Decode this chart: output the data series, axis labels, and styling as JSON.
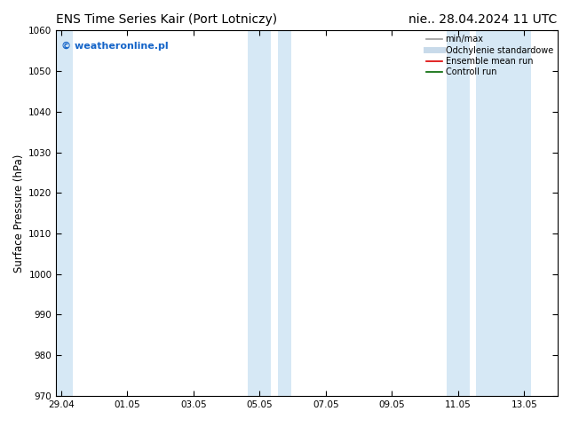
{
  "title_left": "ENS Time Series Kair (Port Lotniczy)",
  "title_right": "nie.. 28.04.2024 11 UTC",
  "ylabel": "Surface Pressure (hPa)",
  "ylim": [
    970,
    1060
  ],
  "yticks": [
    970,
    980,
    990,
    1000,
    1010,
    1020,
    1030,
    1040,
    1050,
    1060
  ],
  "x_tick_labels": [
    "29.04",
    "01.05",
    "03.05",
    "05.05",
    "07.05",
    "09.05",
    "11.05",
    "13.05"
  ],
  "x_tick_positions": [
    0,
    2,
    4,
    6,
    8,
    10,
    12,
    14
  ],
  "x_min": -0.15,
  "x_max": 15.0,
  "shaded_bands": [
    {
      "x_start": -0.15,
      "x_end": 0.35
    },
    {
      "x_start": 5.65,
      "x_end": 6.35
    },
    {
      "x_start": 6.55,
      "x_end": 6.95
    },
    {
      "x_start": 11.65,
      "x_end": 12.35
    },
    {
      "x_start": 12.55,
      "x_end": 14.2
    }
  ],
  "shade_color": "#d6e8f5",
  "background_color": "#ffffff",
  "watermark_text": "© weatheronline.pl",
  "watermark_color": "#1464c8",
  "legend_items": [
    {
      "label": "min/max",
      "color": "#999999",
      "lw": 1.2,
      "style": "solid"
    },
    {
      "label": "Odchylenie standardowe",
      "color": "#c8daea",
      "lw": 5,
      "style": "solid"
    },
    {
      "label": "Ensemble mean run",
      "color": "#dd0000",
      "lw": 1.2,
      "style": "solid"
    },
    {
      "label": "Controll run",
      "color": "#006600",
      "lw": 1.2,
      "style": "solid"
    }
  ],
  "title_fontsize": 10,
  "tick_fontsize": 7.5,
  "ylabel_fontsize": 8.5,
  "watermark_fontsize": 8
}
